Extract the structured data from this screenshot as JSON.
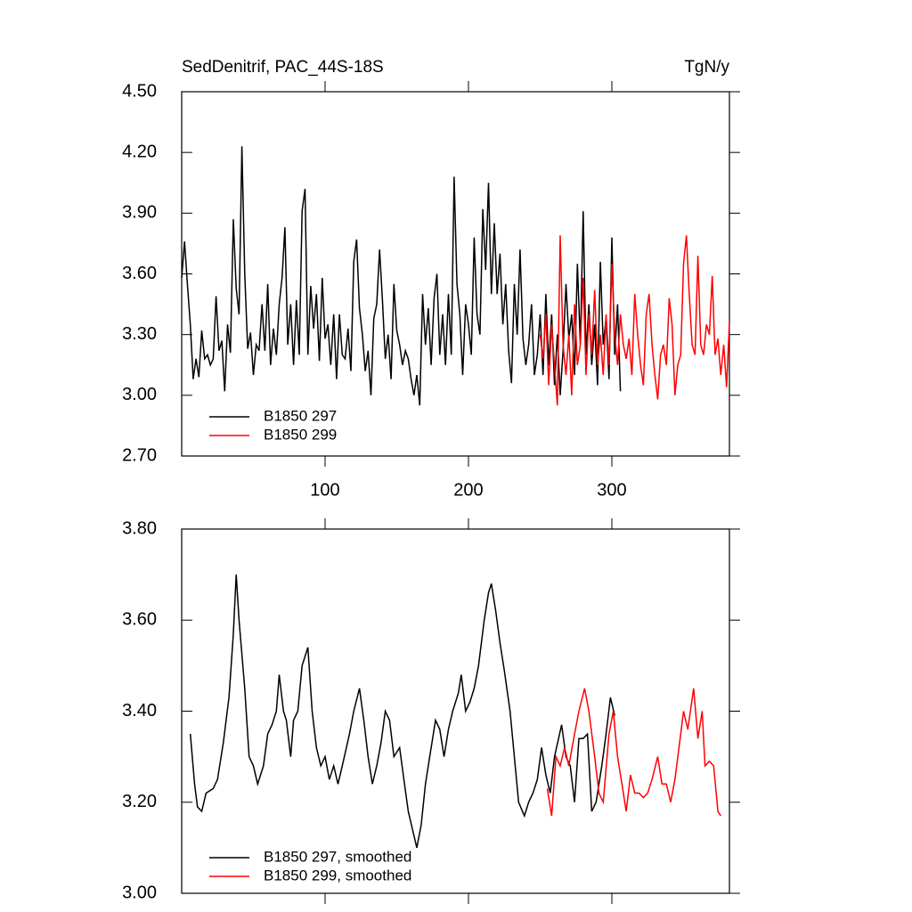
{
  "chart_data": [
    {
      "type": "line",
      "title": "SedDenitrif, PAC_44S-18S",
      "units": "TgN/y",
      "xlim": [
        0,
        382
      ],
      "xticks": [
        100,
        200,
        300
      ],
      "show_xtick_labels": true,
      "ylim": [
        2.7,
        4.5
      ],
      "yticks": [
        {
          "value": 2.7,
          "label": "2.70"
        },
        {
          "value": 3.0,
          "label": "3.00"
        },
        {
          "value": 3.3,
          "label": "3.30"
        },
        {
          "value": 3.6,
          "label": "3.60"
        },
        {
          "value": 3.9,
          "label": "3.90"
        },
        {
          "value": 4.2,
          "label": "4.20"
        },
        {
          "value": 4.5,
          "label": "4.50"
        }
      ],
      "series": [
        {
          "name": "B1850 297",
          "color": "#000000",
          "x": [
            0,
            2,
            4,
            6,
            8,
            10,
            12,
            14,
            16,
            18,
            20,
            22,
            24,
            26,
            28,
            30,
            32,
            34,
            36,
            38,
            40,
            42,
            44,
            46,
            48,
            50,
            52,
            54,
            56,
            58,
            60,
            62,
            64,
            66,
            68,
            70,
            72,
            74,
            76,
            78,
            80,
            82,
            84,
            86,
            88,
            90,
            92,
            94,
            96,
            98,
            100,
            102,
            104,
            106,
            108,
            110,
            112,
            114,
            116,
            118,
            120,
            122,
            124,
            126,
            128,
            130,
            132,
            134,
            136,
            138,
            140,
            142,
            144,
            146,
            148,
            150,
            152,
            154,
            156,
            158,
            160,
            162,
            164,
            166,
            168,
            170,
            172,
            174,
            176,
            178,
            180,
            182,
            184,
            186,
            188,
            190,
            192,
            194,
            196,
            198,
            200,
            202,
            204,
            206,
            208,
            210,
            212,
            214,
            216,
            218,
            220,
            222,
            224,
            226,
            228,
            230,
            232,
            234,
            236,
            238,
            240,
            242,
            244,
            246,
            248,
            250,
            252,
            254,
            256,
            258,
            260,
            262,
            264,
            266,
            268,
            270,
            272,
            274,
            276,
            278,
            280,
            282,
            284,
            286,
            288,
            290,
            292,
            294,
            296,
            298,
            300,
            302,
            304,
            306
          ],
          "values": [
            3.58,
            3.76,
            3.55,
            3.35,
            3.08,
            3.18,
            3.09,
            3.32,
            3.18,
            3.2,
            3.15,
            3.18,
            3.49,
            3.22,
            3.27,
            3.02,
            3.35,
            3.21,
            3.87,
            3.53,
            3.4,
            4.23,
            3.6,
            3.23,
            3.31,
            3.1,
            3.25,
            3.22,
            3.45,
            3.22,
            3.55,
            3.15,
            3.33,
            3.2,
            3.45,
            3.58,
            3.83,
            3.25,
            3.45,
            3.15,
            3.47,
            3.2,
            3.91,
            4.02,
            3.2,
            3.54,
            3.33,
            3.5,
            3.17,
            3.58,
            3.28,
            3.35,
            3.15,
            3.4,
            3.08,
            3.4,
            3.2,
            3.18,
            3.33,
            3.12,
            3.66,
            3.77,
            3.43,
            3.3,
            3.12,
            3.22,
            3.0,
            3.38,
            3.45,
            3.72,
            3.47,
            3.18,
            3.3,
            3.08,
            3.55,
            3.32,
            3.25,
            3.15,
            3.22,
            3.18,
            3.08,
            3.0,
            3.1,
            2.95,
            3.5,
            3.25,
            3.43,
            3.15,
            3.48,
            3.6,
            3.2,
            3.4,
            3.15,
            3.5,
            3.2,
            4.08,
            3.55,
            3.4,
            3.1,
            3.45,
            3.35,
            3.2,
            3.78,
            3.4,
            3.3,
            3.92,
            3.62,
            4.05,
            3.5,
            3.85,
            3.5,
            3.7,
            3.35,
            3.55,
            3.22,
            3.06,
            3.55,
            3.3,
            3.72,
            3.28,
            3.15,
            3.25,
            3.45,
            3.1,
            3.2,
            3.4,
            3.1,
            3.5,
            3.15,
            3.4,
            3.05,
            3.3,
            3.0,
            3.22,
            3.55,
            3.28,
            3.4,
            3.1,
            3.65,
            3.25,
            3.91,
            3.2,
            3.45,
            3.15,
            3.35,
            3.05,
            3.66,
            3.25,
            3.38,
            3.08,
            3.78,
            3.2,
            3.45,
            3.02
          ]
        },
        {
          "name": "B1850 299",
          "color": "#ff0000",
          "x": [
            250,
            252,
            254,
            256,
            258,
            260,
            262,
            264,
            266,
            268,
            270,
            272,
            274,
            276,
            278,
            280,
            282,
            284,
            286,
            288,
            290,
            292,
            294,
            296,
            298,
            300,
            302,
            304,
            306,
            308,
            310,
            312,
            314,
            316,
            318,
            320,
            322,
            324,
            326,
            328,
            330,
            332,
            334,
            336,
            338,
            340,
            342,
            344,
            346,
            348,
            350,
            352,
            354,
            356,
            358,
            360,
            362,
            364,
            366,
            368,
            370,
            372,
            374,
            376,
            378,
            380,
            382
          ],
          "values": [
            3.3,
            3.18,
            3.4,
            3.05,
            3.35,
            3.15,
            2.95,
            3.79,
            3.25,
            3.1,
            3.3,
            3.0,
            3.45,
            3.15,
            3.25,
            3.58,
            3.1,
            3.4,
            3.2,
            3.52,
            3.15,
            3.3,
            3.1,
            3.4,
            3.15,
            3.65,
            3.3,
            3.15,
            3.4,
            3.25,
            3.18,
            3.28,
            3.1,
            3.5,
            3.3,
            3.15,
            3.05,
            3.4,
            3.5,
            3.25,
            3.1,
            2.98,
            3.2,
            3.25,
            3.15,
            3.48,
            3.35,
            3.0,
            3.15,
            3.2,
            3.65,
            3.79,
            3.5,
            3.25,
            3.2,
            3.69,
            3.25,
            3.2,
            3.35,
            3.3,
            3.59,
            3.2,
            3.28,
            3.1,
            3.25,
            3.04,
            3.36
          ]
        }
      ]
    },
    {
      "type": "line",
      "xlim": [
        0,
        382
      ],
      "xticks": [
        100,
        200,
        300
      ],
      "show_xtick_labels": false,
      "ylim": [
        3.0,
        3.8
      ],
      "yticks": [
        {
          "value": 3.0,
          "label": "3.00"
        },
        {
          "value": 3.2,
          "label": "3.20"
        },
        {
          "value": 3.4,
          "label": "3.40"
        },
        {
          "value": 3.6,
          "label": "3.60"
        },
        {
          "value": 3.8,
          "label": "3.80"
        }
      ],
      "series": [
        {
          "name": "B1850 297, smoothed",
          "color": "#000000",
          "x": [
            6,
            9,
            11,
            14,
            17,
            22,
            25,
            29,
            33,
            36,
            38,
            40,
            44,
            47,
            50,
            53,
            57,
            60,
            63,
            66,
            68,
            71,
            73,
            76,
            78,
            81,
            84,
            88,
            91,
            94,
            97,
            100,
            103,
            106,
            109,
            112,
            117,
            120,
            124,
            127,
            130,
            133,
            136,
            139,
            142,
            145,
            148,
            152,
            155,
            158,
            161,
            164,
            167,
            170,
            173,
            177,
            180,
            183,
            186,
            189,
            193,
            195,
            198,
            201,
            204,
            207,
            211,
            214,
            216,
            219,
            222,
            225,
            229,
            232,
            235,
            239,
            242,
            245,
            248,
            251,
            254,
            257,
            260,
            265,
            268,
            271,
            274,
            277,
            280,
            283,
            286,
            289,
            293,
            296,
            299,
            302
          ],
          "values": [
            3.35,
            3.24,
            3.19,
            3.18,
            3.22,
            3.23,
            3.25,
            3.33,
            3.43,
            3.57,
            3.7,
            3.6,
            3.45,
            3.3,
            3.28,
            3.24,
            3.28,
            3.35,
            3.37,
            3.4,
            3.48,
            3.4,
            3.38,
            3.3,
            3.38,
            3.4,
            3.5,
            3.54,
            3.4,
            3.32,
            3.28,
            3.3,
            3.25,
            3.28,
            3.24,
            3.28,
            3.35,
            3.4,
            3.45,
            3.38,
            3.3,
            3.24,
            3.28,
            3.33,
            3.4,
            3.38,
            3.3,
            3.32,
            3.25,
            3.18,
            3.14,
            3.1,
            3.15,
            3.24,
            3.3,
            3.38,
            3.36,
            3.3,
            3.36,
            3.4,
            3.44,
            3.48,
            3.4,
            3.42,
            3.45,
            3.5,
            3.6,
            3.66,
            3.68,
            3.62,
            3.55,
            3.49,
            3.4,
            3.3,
            3.2,
            3.17,
            3.2,
            3.22,
            3.25,
            3.32,
            3.26,
            3.22,
            3.3,
            3.37,
            3.3,
            3.28,
            3.2,
            3.34,
            3.34,
            3.35,
            3.18,
            3.2,
            3.28,
            3.35,
            3.43,
            3.39
          ]
        },
        {
          "name": "B1850 299, smoothed",
          "color": "#ff0000",
          "x": [
            255,
            258,
            261,
            264,
            267,
            270,
            274,
            277,
            281,
            284,
            288,
            291,
            294,
            298,
            301,
            304,
            307,
            310,
            313,
            316,
            319,
            322,
            325,
            328,
            332,
            335,
            338,
            341,
            344,
            348,
            350,
            353,
            357,
            360,
            363,
            365,
            368,
            371,
            374,
            376
          ],
          "values": [
            3.23,
            3.17,
            3.3,
            3.28,
            3.32,
            3.28,
            3.35,
            3.4,
            3.45,
            3.4,
            3.3,
            3.22,
            3.2,
            3.35,
            3.4,
            3.3,
            3.24,
            3.18,
            3.26,
            3.22,
            3.22,
            3.21,
            3.22,
            3.25,
            3.3,
            3.24,
            3.24,
            3.2,
            3.25,
            3.35,
            3.4,
            3.36,
            3.45,
            3.34,
            3.4,
            3.28,
            3.29,
            3.28,
            3.18,
            3.17
          ]
        }
      ]
    }
  ]
}
